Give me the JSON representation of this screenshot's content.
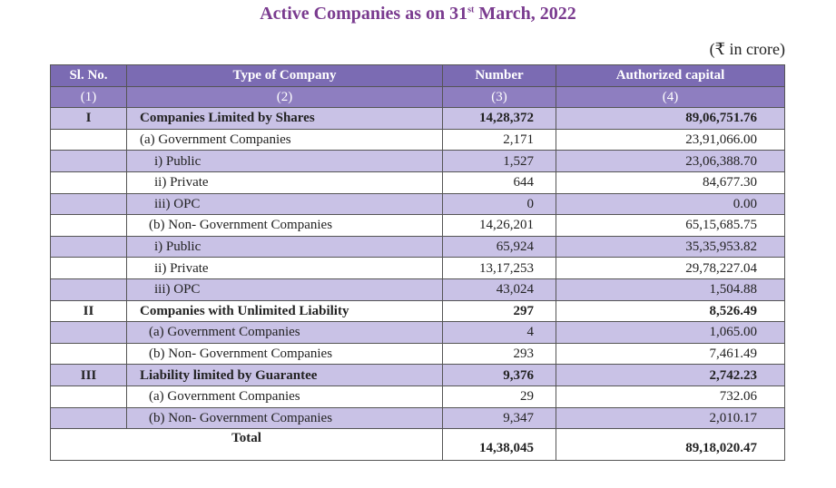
{
  "title_main": "Active Companies as on 31",
  "title_sup": "st",
  "title_end": " March, 2022",
  "unit": "(₹ in crore)",
  "headers": [
    "Sl. No.",
    "Type of Company",
    "Number",
    "Authorized capital"
  ],
  "header_nums": [
    "(1)",
    "(2)",
    "(3)",
    "(4)"
  ],
  "rows": [
    {
      "sl": "I",
      "type": "Companies Limited by Shares",
      "number": "14,28,372",
      "capital": "89,06,751.76"
    },
    {
      "sl": "",
      "type": "(a) Government Companies",
      "number": "2,171",
      "capital": "23,91,066.00"
    },
    {
      "sl": "",
      "type": "i) Public",
      "number": "1,527",
      "capital": "23,06,388.70"
    },
    {
      "sl": "",
      "type": "ii) Private",
      "number": "644",
      "capital": "84,677.30"
    },
    {
      "sl": "",
      "type": "iii) OPC",
      "number": "0",
      "capital": "0.00"
    },
    {
      "sl": "",
      "type": "(b) Non- Government Companies",
      "number": "14,26,201",
      "capital": "65,15,685.75"
    },
    {
      "sl": "",
      "type": "i) Public",
      "number": "65,924",
      "capital": "35,35,953.82"
    },
    {
      "sl": "",
      "type": "ii) Private",
      "number": "13,17,253",
      "capital": "29,78,227.04"
    },
    {
      "sl": "",
      "type": "iii) OPC",
      "number": "43,024",
      "capital": "1,504.88"
    },
    {
      "sl": "II",
      "type": "Companies with Unlimited Liability",
      "number": "297",
      "capital": "8,526.49"
    },
    {
      "sl": "",
      "type": "(a) Government Companies",
      "number": "4",
      "capital": "1,065.00"
    },
    {
      "sl": "",
      "type": "(b) Non- Government Companies",
      "number": "293",
      "capital": "7,461.49"
    },
    {
      "sl": "III",
      "type": "Liability limited by Guarantee",
      "number": "9,376",
      "capital": "2,742.23"
    },
    {
      "sl": "",
      "type": "(a) Government Companies",
      "number": "29",
      "capital": "732.06"
    },
    {
      "sl": "",
      "type": "(b) Non- Government Companies",
      "number": "9,347",
      "capital": "2,010.17"
    }
  ],
  "total": {
    "label": "Total",
    "number": "14,38,045",
    "capital": "89,18,020.47"
  }
}
